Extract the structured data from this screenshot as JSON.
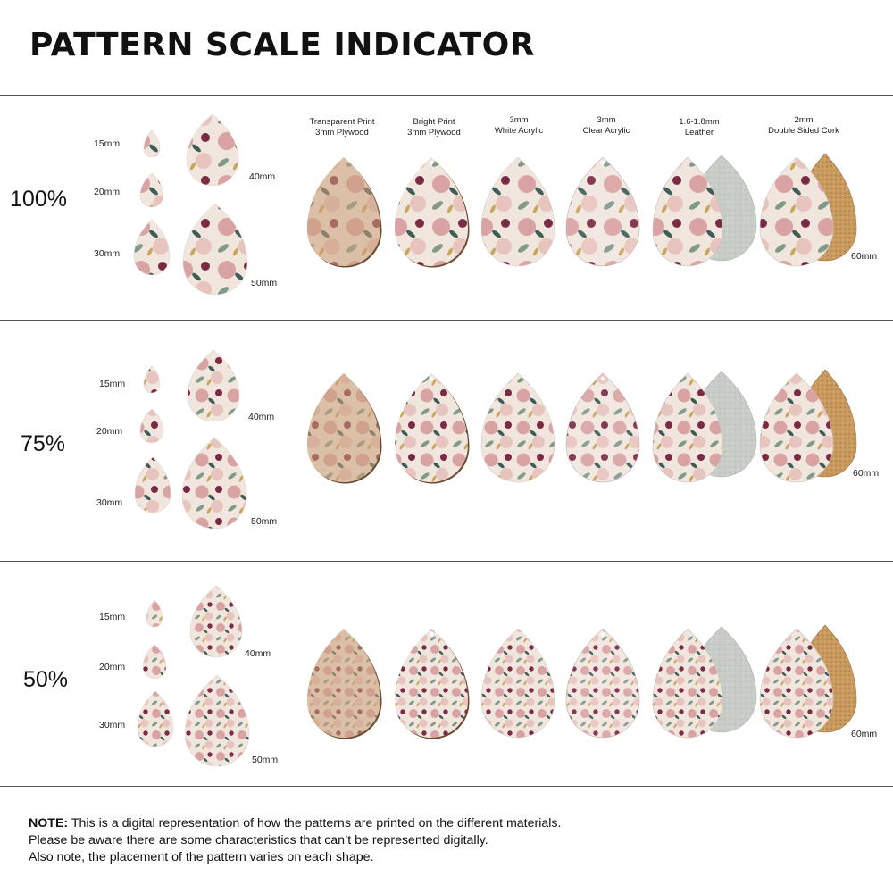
{
  "title": "PATTERN SCALE INDICATOR",
  "materials": [
    {
      "line1": "Transparent Print",
      "line2": "3mm Plywood"
    },
    {
      "line1": "Bright Print",
      "line2": "3mm Plywood"
    },
    {
      "line1": "3mm",
      "line2": "White Acrylic"
    },
    {
      "line1": "3mm",
      "line2": "Clear Acrylic"
    },
    {
      "line1": "1.6-1.8mm",
      "line2": "Leather"
    },
    {
      "line1": "2mm",
      "line2": "Double Sided Cork"
    }
  ],
  "sizes": [
    "15mm",
    "20mm",
    "30mm",
    "40mm",
    "50mm"
  ],
  "large_size": "60mm",
  "scales": [
    "100%",
    "75%",
    "50%"
  ],
  "note": {
    "label": "NOTE:",
    "line1": "This is a digital representation of how the patterns are printed on the different materials.",
    "line2": "Please be aware there are some characteristics that can’t be represented digitally.",
    "line3": "Also note, the placement of the pattern varies on each shape."
  },
  "colors": {
    "rule": "#555555",
    "plywood": "#c9a07a",
    "pattern_base": "#f1e6de",
    "rose": "#d9a3a4",
    "burgundy": "#7b2a45",
    "sage": "#7f9a88",
    "teal": "#3f5c57",
    "mustard": "#c9a45a",
    "leather_back": "#c8ccc6",
    "cork_back": "#c99a5e"
  }
}
